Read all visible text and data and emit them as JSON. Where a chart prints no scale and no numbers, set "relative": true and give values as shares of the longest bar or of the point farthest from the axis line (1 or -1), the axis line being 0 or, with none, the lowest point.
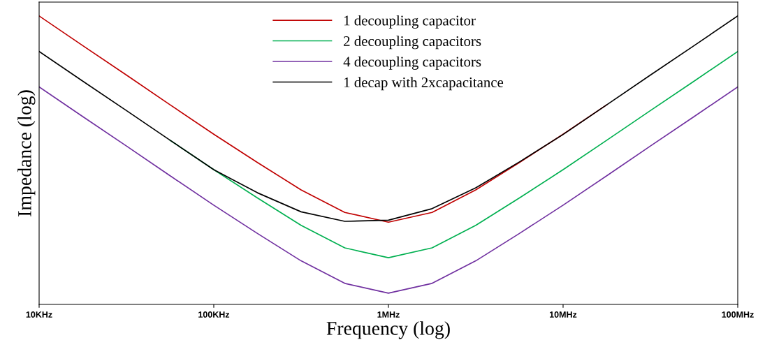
{
  "chart_data": {
    "type": "line",
    "xlabel": "Frequency (log)",
    "ylabel": "Impedance (log)",
    "relative": true,
    "categories": [
      "10KHz",
      null,
      null,
      null,
      "100KHz",
      null,
      null,
      null,
      "1MHz",
      null,
      null,
      null,
      "10MHz",
      null,
      null,
      null,
      "100MHz"
    ],
    "series": [
      {
        "name": "1 decoupling capacitor",
        "color": "#c00000",
        "values": [
          1.0,
          0.897,
          0.795,
          0.692,
          0.59,
          0.492,
          0.397,
          0.319,
          0.285,
          0.319,
          0.397,
          0.492,
          0.59,
          0.692,
          null,
          null,
          null
        ]
      },
      {
        "name": "2 decoupling capacitors",
        "color": "#00b050",
        "values": [
          null,
          null,
          null,
          0.569,
          0.467,
          0.369,
          0.274,
          0.196,
          0.162,
          0.196,
          0.274,
          0.369,
          0.467,
          0.569,
          0.672,
          0.774,
          0.877
        ]
      },
      {
        "name": "4 decoupling capacitors",
        "color": "#7030a0",
        "values": [
          0.754,
          0.651,
          0.549,
          0.446,
          0.344,
          0.246,
          0.151,
          0.073,
          0.039,
          0.073,
          0.151,
          0.246,
          0.344,
          0.446,
          0.549,
          0.651,
          0.754
        ]
      },
      {
        "name": "1 decap with 2xcapacitance",
        "color": "#000000",
        "values": [
          0.877,
          0.774,
          0.672,
          0.569,
          0.467,
          0.387,
          0.321,
          0.288,
          0.292,
          0.332,
          0.404,
          0.494,
          0.589,
          0.692,
          0.795,
          0.897,
          1.0
        ]
      }
    ],
    "legend": "top",
    "line_style": "solid",
    "marker": "none"
  }
}
